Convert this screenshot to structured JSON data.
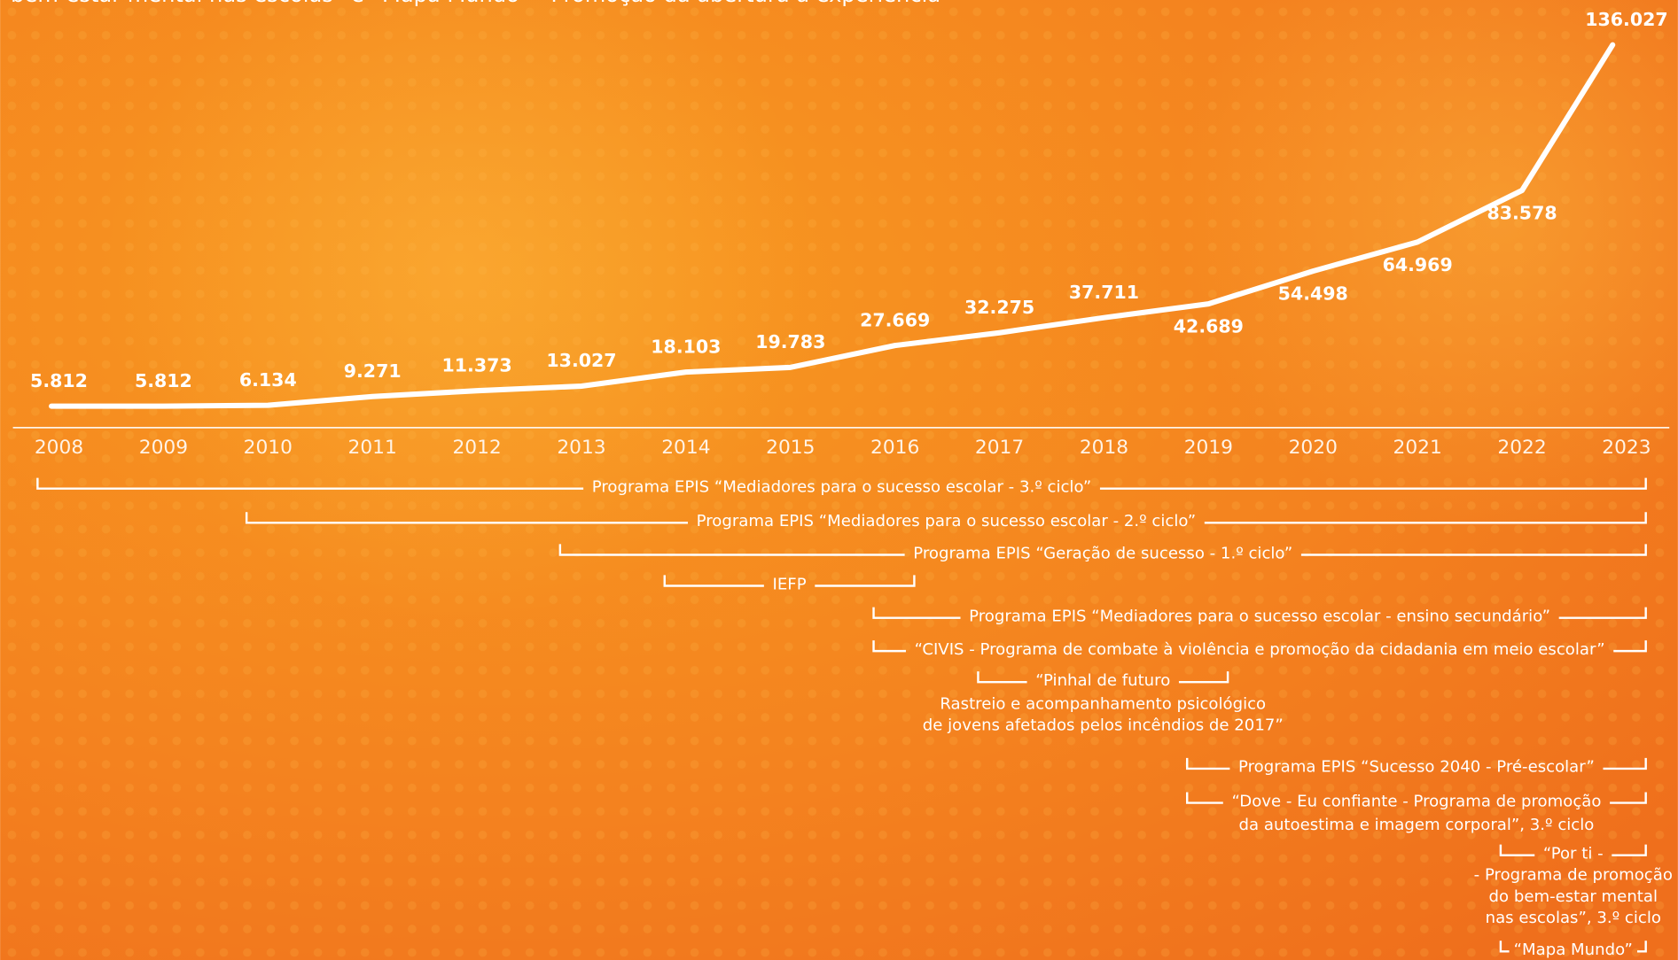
{
  "chart_data": {
    "type": "line",
    "subtitle": "bem-estar mental nas escolas” e “Mapa Mundo” - Promoção da abertura à experiência",
    "categories": [
      "2008",
      "2009",
      "2010",
      "2011",
      "2012",
      "2013",
      "2014",
      "2015",
      "2016",
      "2017",
      "2018",
      "2019",
      "2020",
      "2021",
      "2022",
      "2023"
    ],
    "values": [
      5812,
      5812,
      6134,
      9271,
      11373,
      13027,
      18103,
      19783,
      27669,
      32275,
      37711,
      42689,
      54498,
      64969,
      83578,
      136027
    ],
    "value_labels": [
      "5.812",
      "5.812",
      "6.134",
      "9.271",
      "11.373",
      "13.027",
      "18.103",
      "19.783",
      "27.669",
      "32.275",
      "37.711",
      "42.689",
      "54.498",
      "64.969",
      "83.578",
      "136.027"
    ],
    "color": "#ffffff",
    "programs": [
      {
        "label": [
          "Programa EPIS “Mediadores para o sucesso escolar - 3.º ciclo”"
        ],
        "start": 2008,
        "end": 2023
      },
      {
        "label": [
          "Programa EPIS “Mediadores para o sucesso escolar - 2.º ciclo”"
        ],
        "start": 2010,
        "end": 2023
      },
      {
        "label": [
          "Programa EPIS “Geração de sucesso - 1.º ciclo”"
        ],
        "start": 2013,
        "end": 2023
      },
      {
        "label": [
          "IEFP"
        ],
        "start": 2014,
        "end": 2016
      },
      {
        "label": [
          "Programa EPIS “Mediadores para o sucesso escolar - ensino secundário”"
        ],
        "start": 2016,
        "end": 2023
      },
      {
        "label": [
          "“CIVIS - Programa de combate à violência e promoção da cidadania em meio escolar”"
        ],
        "start": 2016,
        "end": 2023
      },
      {
        "label": [
          "“Pinhal de futuro",
          "Rastreio e acompanhamento psicológico",
          "de jovens afetados pelos incêndios de 2017”"
        ],
        "start": 2017,
        "end": 2019
      },
      {
        "label": [
          "Programa EPIS “Sucesso 2040 - Pré-escolar”"
        ],
        "start": 2019,
        "end": 2023
      },
      {
        "label": [
          "“Dove - Eu confiante - Programa de promoção",
          "da autoestima e imagem corporal”, 3.º ciclo"
        ],
        "start": 2019,
        "end": 2023
      },
      {
        "label": [
          "“Por ti -",
          "- Programa de promoção",
          "do bem-estar mental",
          "nas escolas”, 3.º ciclo"
        ],
        "start": 2022,
        "end": 2023
      },
      {
        "label": [
          "“Mapa Mundo”"
        ],
        "start": 2022,
        "end": 2023
      }
    ]
  }
}
